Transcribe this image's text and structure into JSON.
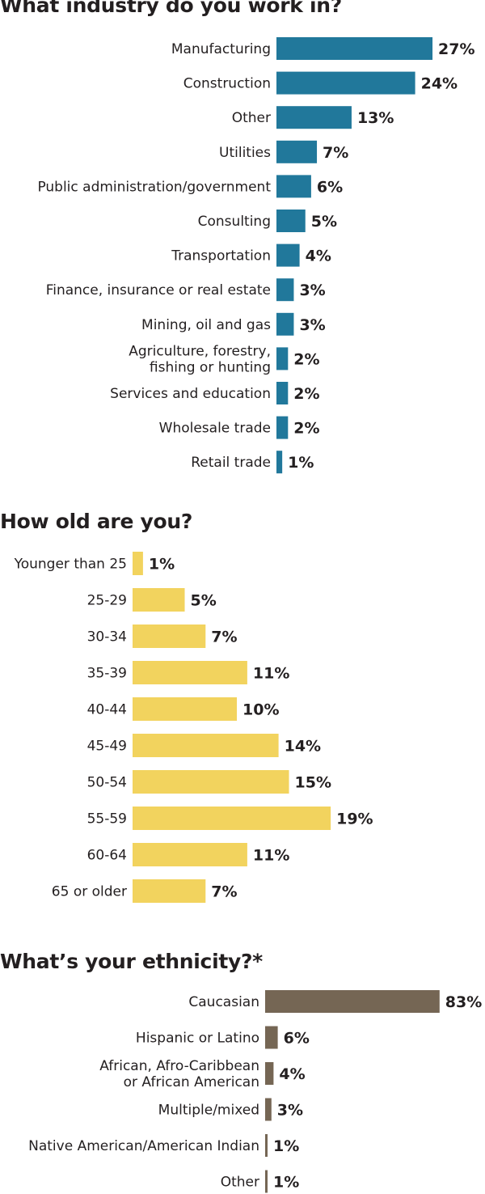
{
  "chart_data": [
    {
      "type": "bar",
      "orientation": "horizontal",
      "title": "What industry do you work in?",
      "categories": [
        "Manufacturing",
        "Construction",
        "Other",
        "Utilities",
        "Public administration/government",
        "Consulting",
        "Transportation",
        "Finance, insurance or real estate",
        "Mining, oil and gas",
        "Agriculture, forestry,\nfishing or hunting",
        "Services and education",
        "Wholesale trade",
        "Retail trade"
      ],
      "values": [
        27,
        24,
        13,
        7,
        6,
        5,
        4,
        3,
        3,
        2,
        2,
        2,
        1
      ],
      "value_labels": [
        "27%",
        "24%",
        "13%",
        "7%",
        "6%",
        "5%",
        "4%",
        "3%",
        "3%",
        "2%",
        "2%",
        "2%",
        "1%"
      ],
      "unit": "%",
      "color": "#21789b"
    },
    {
      "type": "bar",
      "orientation": "horizontal",
      "title": "How old are you?",
      "categories": [
        "Younger than 25",
        "25-29",
        "30-34",
        "35-39",
        "40-44",
        "45-49",
        "50-54",
        "55-59",
        "60-64",
        "65 or older"
      ],
      "values": [
        1,
        5,
        7,
        11,
        10,
        14,
        15,
        19,
        11,
        7
      ],
      "value_labels": [
        "1%",
        "5%",
        "7%",
        "11%",
        "10%",
        "14%",
        "15%",
        "19%",
        "11%",
        "7%"
      ],
      "unit": "%",
      "color": "#f2d35e"
    },
    {
      "type": "bar",
      "orientation": "horizontal",
      "title": "What’s your ethnicity?*",
      "categories": [
        "Caucasian",
        "Hispanic or Latino",
        "African, Afro-Caribbean\nor African American",
        "Multiple/mixed",
        "Native American/American Indian",
        "Other"
      ],
      "values": [
        83,
        6,
        4,
        3,
        1,
        1
      ],
      "value_labels": [
        "83%",
        "6%",
        "4%",
        "3%",
        "1%",
        "1%"
      ],
      "unit": "%",
      "color": "#756654"
    }
  ]
}
